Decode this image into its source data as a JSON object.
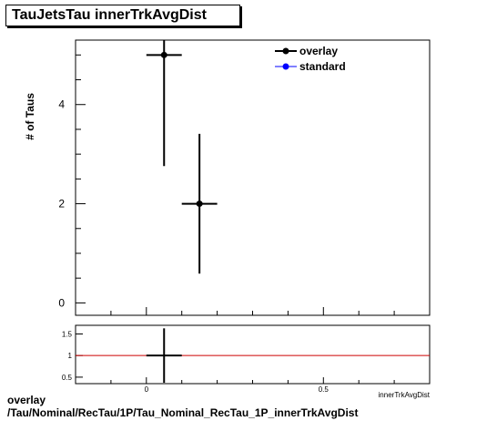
{
  "title": "TauJetsTau innerTrkAvgDist",
  "footer": {
    "line1": "overlay",
    "line2": "/Tau/Nominal/RecTau/1P/Tau_Nominal_RecTau_1P_innerTrkAvgDist"
  },
  "colors": {
    "overlay": "#000000",
    "standard": "#0000ff",
    "ratio_line": "#cc0000"
  },
  "chart_data": [
    {
      "type": "scatter",
      "title": "TauJetsTau innerTrkAvgDist",
      "xlabel": "innerTrkAvgDist",
      "ylabel": "# of Taus",
      "xlim": [
        -0.2,
        0.8
      ],
      "ylim": [
        -0.25,
        5.3
      ],
      "x_ticks": [
        0,
        0.5
      ],
      "x_tick_labels": [
        "0",
        "0.5"
      ],
      "y_ticks": [
        0,
        2,
        4
      ],
      "y_tick_labels": [
        "0",
        "2",
        "4"
      ],
      "legend_position": "top-right",
      "series": [
        {
          "name": "overlay",
          "points": [
            {
              "x": 0.05,
              "y": 5,
              "xerr": 0.05,
              "ylow": 2.76,
              "yhigh": 7.24
            },
            {
              "x": 0.15,
              "y": 2,
              "xerr": 0.05,
              "ylow": 0.59,
              "yhigh": 3.41
            }
          ]
        },
        {
          "name": "standard",
          "points": []
        }
      ]
    },
    {
      "type": "scatter",
      "xlim": [
        -0.2,
        0.8
      ],
      "ylim": [
        0.35,
        1.7
      ],
      "y_ticks": [
        0.5,
        1,
        1.5
      ],
      "y_tick_labels": [
        "0.5",
        "1",
        "1.5"
      ],
      "reference_line": 1,
      "points": [
        {
          "x": 0.05,
          "y": 1,
          "xerr": 0.05,
          "ylow": 0.37,
          "yhigh": 1.63
        }
      ]
    }
  ]
}
